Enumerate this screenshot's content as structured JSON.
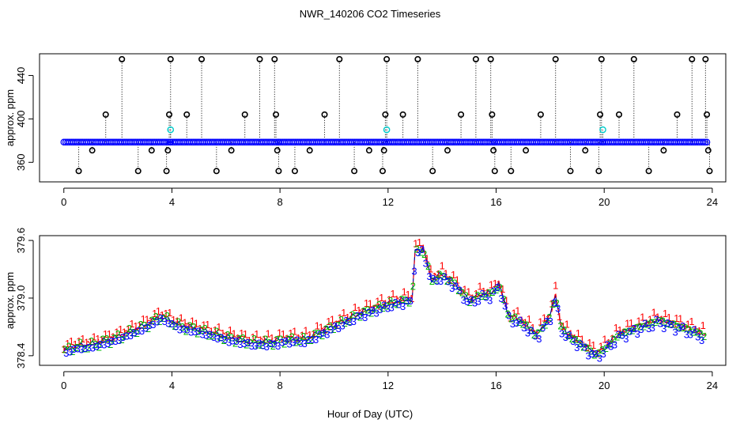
{
  "figure": {
    "title": "NWR_140206  CO2 Timeseries",
    "xlabel": "Hour of Day (UTC)"
  },
  "colors": {
    "black": "#000000",
    "blue": "#0000ff",
    "cyan": "#00cccc",
    "red": "#ff0000",
    "green": "#00bb00",
    "darkblue": "#000099",
    "axis": "#000000"
  },
  "chart_data": [
    {
      "type": "scatter",
      "name": "top-panel",
      "title": "",
      "xlabel": "",
      "ylabel": "approx. ppm",
      "xlim": [
        -0.9,
        24.5
      ],
      "ylim": [
        342,
        460
      ],
      "xticks": [
        0,
        4,
        8,
        12,
        16,
        20,
        24
      ],
      "yticks": [
        360,
        400,
        440
      ],
      "baseline_level": 378.6,
      "baseline_segments": [
        [
          0.0,
          3.95
        ],
        [
          3.95,
          7.95
        ],
        [
          7.95,
          11.95
        ],
        [
          11.95,
          15.95
        ],
        [
          15.95,
          19.95
        ],
        [
          19.95,
          23.85
        ]
      ],
      "outliers": [
        {
          "x": 0.55,
          "y": 352
        },
        {
          "x": 1.05,
          "y": 371
        },
        {
          "x": 1.55,
          "y": 404
        },
        {
          "x": 2.15,
          "y": 455
        },
        {
          "x": 2.75,
          "y": 352
        },
        {
          "x": 3.25,
          "y": 371
        },
        {
          "x": 3.8,
          "y": 352
        },
        {
          "x": 3.85,
          "y": 371
        },
        {
          "x": 3.9,
          "y": 404
        },
        {
          "x": 3.95,
          "y": 455
        },
        {
          "x": 4.55,
          "y": 404
        },
        {
          "x": 5.1,
          "y": 455
        },
        {
          "x": 5.65,
          "y": 352
        },
        {
          "x": 6.2,
          "y": 371
        },
        {
          "x": 6.7,
          "y": 404
        },
        {
          "x": 7.25,
          "y": 455
        },
        {
          "x": 7.8,
          "y": 455
        },
        {
          "x": 7.85,
          "y": 404
        },
        {
          "x": 7.9,
          "y": 371
        },
        {
          "x": 7.95,
          "y": 352
        },
        {
          "x": 8.55,
          "y": 352
        },
        {
          "x": 9.1,
          "y": 371
        },
        {
          "x": 9.65,
          "y": 404
        },
        {
          "x": 10.2,
          "y": 455
        },
        {
          "x": 10.75,
          "y": 352
        },
        {
          "x": 11.3,
          "y": 371
        },
        {
          "x": 11.8,
          "y": 352
        },
        {
          "x": 11.85,
          "y": 371
        },
        {
          "x": 11.9,
          "y": 404
        },
        {
          "x": 11.95,
          "y": 455
        },
        {
          "x": 12.55,
          "y": 404
        },
        {
          "x": 13.1,
          "y": 455
        },
        {
          "x": 13.65,
          "y": 352
        },
        {
          "x": 14.2,
          "y": 371
        },
        {
          "x": 14.7,
          "y": 404
        },
        {
          "x": 15.25,
          "y": 455
        },
        {
          "x": 15.8,
          "y": 455
        },
        {
          "x": 15.85,
          "y": 404
        },
        {
          "x": 15.9,
          "y": 371
        },
        {
          "x": 15.95,
          "y": 352
        },
        {
          "x": 16.55,
          "y": 352
        },
        {
          "x": 17.1,
          "y": 371
        },
        {
          "x": 17.65,
          "y": 404
        },
        {
          "x": 18.2,
          "y": 455
        },
        {
          "x": 18.75,
          "y": 352
        },
        {
          "x": 19.3,
          "y": 371
        },
        {
          "x": 19.8,
          "y": 352
        },
        {
          "x": 19.85,
          "y": 404
        },
        {
          "x": 19.9,
          "y": 455
        },
        {
          "x": 20.55,
          "y": 404
        },
        {
          "x": 21.1,
          "y": 455
        },
        {
          "x": 21.65,
          "y": 352
        },
        {
          "x": 22.2,
          "y": 371
        },
        {
          "x": 22.7,
          "y": 404
        },
        {
          "x": 23.25,
          "y": 455
        },
        {
          "x": 23.75,
          "y": 455
        },
        {
          "x": 23.8,
          "y": 404
        },
        {
          "x": 23.85,
          "y": 371
        },
        {
          "x": 23.9,
          "y": 352
        }
      ],
      "cyan_points": [
        {
          "x": 3.95,
          "y": 390
        },
        {
          "x": 11.95,
          "y": 390
        },
        {
          "x": 19.95,
          "y": 390
        }
      ]
    },
    {
      "type": "line",
      "name": "bottom-panel",
      "title": "",
      "xlabel": "Hour of Day (UTC)",
      "ylabel": "approx. ppm",
      "xlim": [
        -0.9,
        24.5
      ],
      "ylim": [
        378.3,
        379.65
      ],
      "xticks": [
        0,
        4,
        8,
        12,
        16,
        20,
        24
      ],
      "yticks": [
        378.4,
        379.0,
        379.6
      ],
      "ytick_labels": [
        "378.4",
        "379.0",
        "379.6"
      ],
      "anchors_x": [
        0,
        0.3,
        1,
        2,
        3,
        3.6,
        4.3,
        5,
        6,
        7,
        7.7,
        8.3,
        9,
        10,
        11,
        12,
        12.9,
        13,
        13.3,
        13.6,
        14,
        14.5,
        15,
        15.5,
        15.8,
        16.1,
        16.5,
        16.7,
        17,
        17.5,
        18,
        18.2,
        18.4,
        18.7,
        19.2,
        19.7,
        20,
        20.5,
        21,
        22,
        23,
        23.75
      ],
      "anchors_y": [
        378.45,
        378.5,
        378.52,
        378.6,
        378.72,
        378.82,
        378.72,
        378.68,
        378.6,
        378.55,
        378.55,
        378.58,
        378.58,
        378.72,
        378.85,
        378.95,
        379.0,
        379.5,
        379.52,
        379.2,
        379.25,
        379.15,
        378.98,
        379.05,
        379.05,
        379.15,
        378.8,
        378.8,
        378.75,
        378.62,
        378.82,
        379.05,
        378.7,
        378.62,
        378.52,
        378.42,
        378.48,
        378.62,
        378.68,
        378.78,
        378.7,
        378.62
      ],
      "series": [
        {
          "name": "1",
          "glyph": "1",
          "color": "#ff0000"
        },
        {
          "name": "2",
          "glyph": "2",
          "color": "#00bb00"
        },
        {
          "name": "3",
          "glyph": "3",
          "color": "#0000ff"
        }
      ],
      "line_color": "#000099",
      "dashed_line_color": "#ff0000"
    }
  ]
}
